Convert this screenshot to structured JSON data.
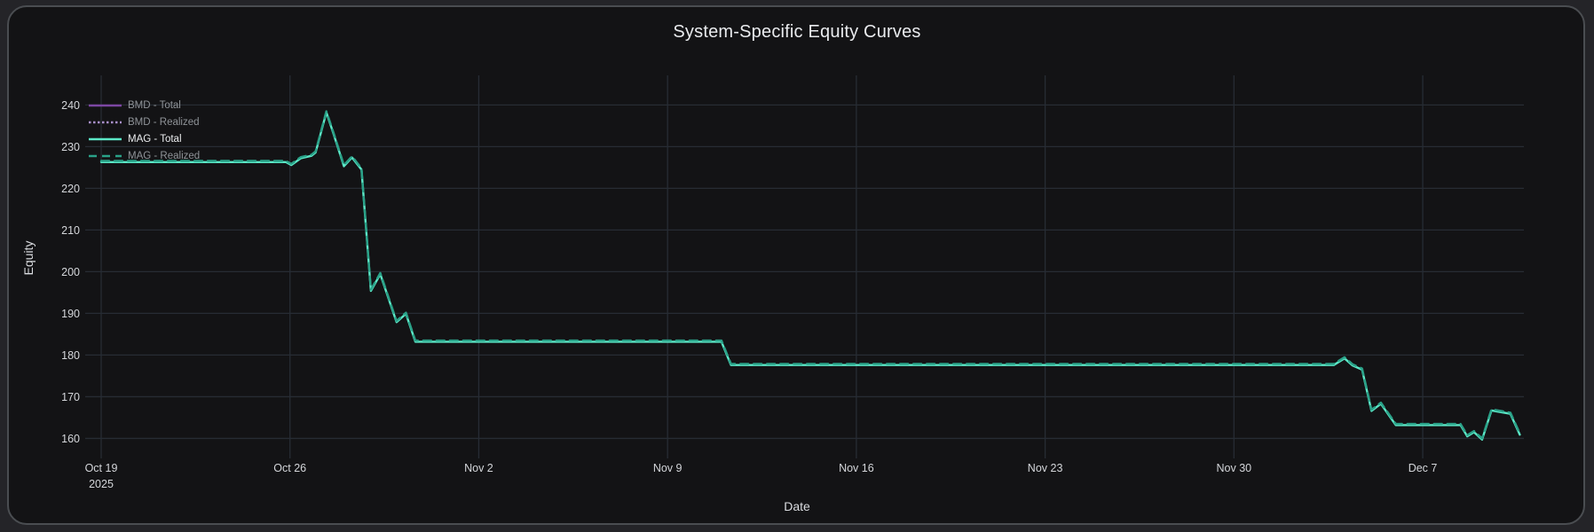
{
  "card": {
    "title": "System-Specific Equity Curves"
  },
  "colors": {
    "page_bg": "#242428",
    "card_bg": "#131315",
    "card_border": "#4a4d51",
    "grid": "#272c34",
    "tick_text": "#d4d6da",
    "axis_title_text": "#dadce0",
    "title_text": "#e9ebee",
    "legend_text_muted": "#8f9398",
    "legend_text_active": "#eceef0"
  },
  "chart_data": {
    "type": "line",
    "title": "System-Specific Equity Curves",
    "xlabel": "Date",
    "ylabel": "Equity",
    "grid": true,
    "legend_position": "top-left",
    "ylim": [
      158.6,
      247.1
    ],
    "y_ticks": [
      160,
      170,
      180,
      190,
      200,
      210,
      220,
      230,
      240
    ],
    "x_range_days": [
      0,
      52.75
    ],
    "x_tick_days": [
      0,
      7,
      14,
      21,
      28,
      35,
      42,
      49
    ],
    "x_tick_labels": [
      "Oct 19",
      "Oct 26",
      "Nov 2",
      "Nov 9",
      "Nov 16",
      "Nov 23",
      "Nov 30",
      "Dec 7"
    ],
    "x_first_tick_sublabel": "2025",
    "series": [
      {
        "name": "BMD - Total",
        "color": "#7c47a3",
        "dash": "solid",
        "label_color": "#8f9398",
        "points": []
      },
      {
        "name": "BMD - Realized",
        "color": "#a88fc9",
        "dash": "dot",
        "label_color": "#8f9398",
        "points": []
      },
      {
        "name": "MAG - Total",
        "color": "#5ce8c7",
        "dash": "solid",
        "label_color": "#eceef0",
        "points": [
          [
            0,
            226.3
          ],
          [
            6.85,
            226.3
          ],
          [
            7.05,
            225.6
          ],
          [
            7.4,
            227.2
          ],
          [
            7.8,
            227.8
          ],
          [
            7.95,
            228.6
          ],
          [
            8.35,
            238.2
          ],
          [
            8.6,
            233.4
          ],
          [
            9.0,
            225.3
          ],
          [
            9.3,
            227.4
          ],
          [
            9.65,
            224.5
          ],
          [
            10.0,
            195.4
          ],
          [
            10.35,
            199.4
          ],
          [
            10.95,
            187.9
          ],
          [
            11.3,
            189.9
          ],
          [
            11.65,
            183.2
          ],
          [
            23.0,
            183.2
          ],
          [
            23.35,
            177.6
          ],
          [
            45.7,
            177.6
          ],
          [
            46.1,
            179.2
          ],
          [
            46.4,
            177.5
          ],
          [
            46.75,
            176.5
          ],
          [
            47.1,
            166.6
          ],
          [
            47.45,
            168.3
          ],
          [
            48.0,
            163.2
          ],
          [
            50.4,
            163.2
          ],
          [
            50.65,
            160.5
          ],
          [
            50.9,
            161.5
          ],
          [
            51.2,
            159.7
          ],
          [
            51.55,
            166.7
          ],
          [
            52.25,
            165.9
          ],
          [
            52.6,
            160.9
          ]
        ]
      },
      {
        "name": "MAG - Realized",
        "color": "#2aa188",
        "dash": "dash",
        "label_color": "#8f9398",
        "points": [
          [
            0,
            226.3
          ],
          [
            6.85,
            226.3
          ],
          [
            7.05,
            225.6
          ],
          [
            7.4,
            227.2
          ],
          [
            7.8,
            227.8
          ],
          [
            7.95,
            228.6
          ],
          [
            8.35,
            238.2
          ],
          [
            8.6,
            233.4
          ],
          [
            9.0,
            225.3
          ],
          [
            9.3,
            227.4
          ],
          [
            9.65,
            224.5
          ],
          [
            10.0,
            195.4
          ],
          [
            10.35,
            199.4
          ],
          [
            10.95,
            187.9
          ],
          [
            11.3,
            189.9
          ],
          [
            11.65,
            183.2
          ],
          [
            23.0,
            183.2
          ],
          [
            23.35,
            177.6
          ],
          [
            45.7,
            177.6
          ],
          [
            46.1,
            179.2
          ],
          [
            46.4,
            177.5
          ],
          [
            46.75,
            176.5
          ],
          [
            47.1,
            166.6
          ],
          [
            47.45,
            168.3
          ],
          [
            48.0,
            163.2
          ],
          [
            50.4,
            163.2
          ],
          [
            50.65,
            160.5
          ],
          [
            50.9,
            161.5
          ],
          [
            51.2,
            159.7
          ],
          [
            51.55,
            166.7
          ],
          [
            52.25,
            165.9
          ],
          [
            52.6,
            160.9
          ]
        ]
      }
    ]
  }
}
